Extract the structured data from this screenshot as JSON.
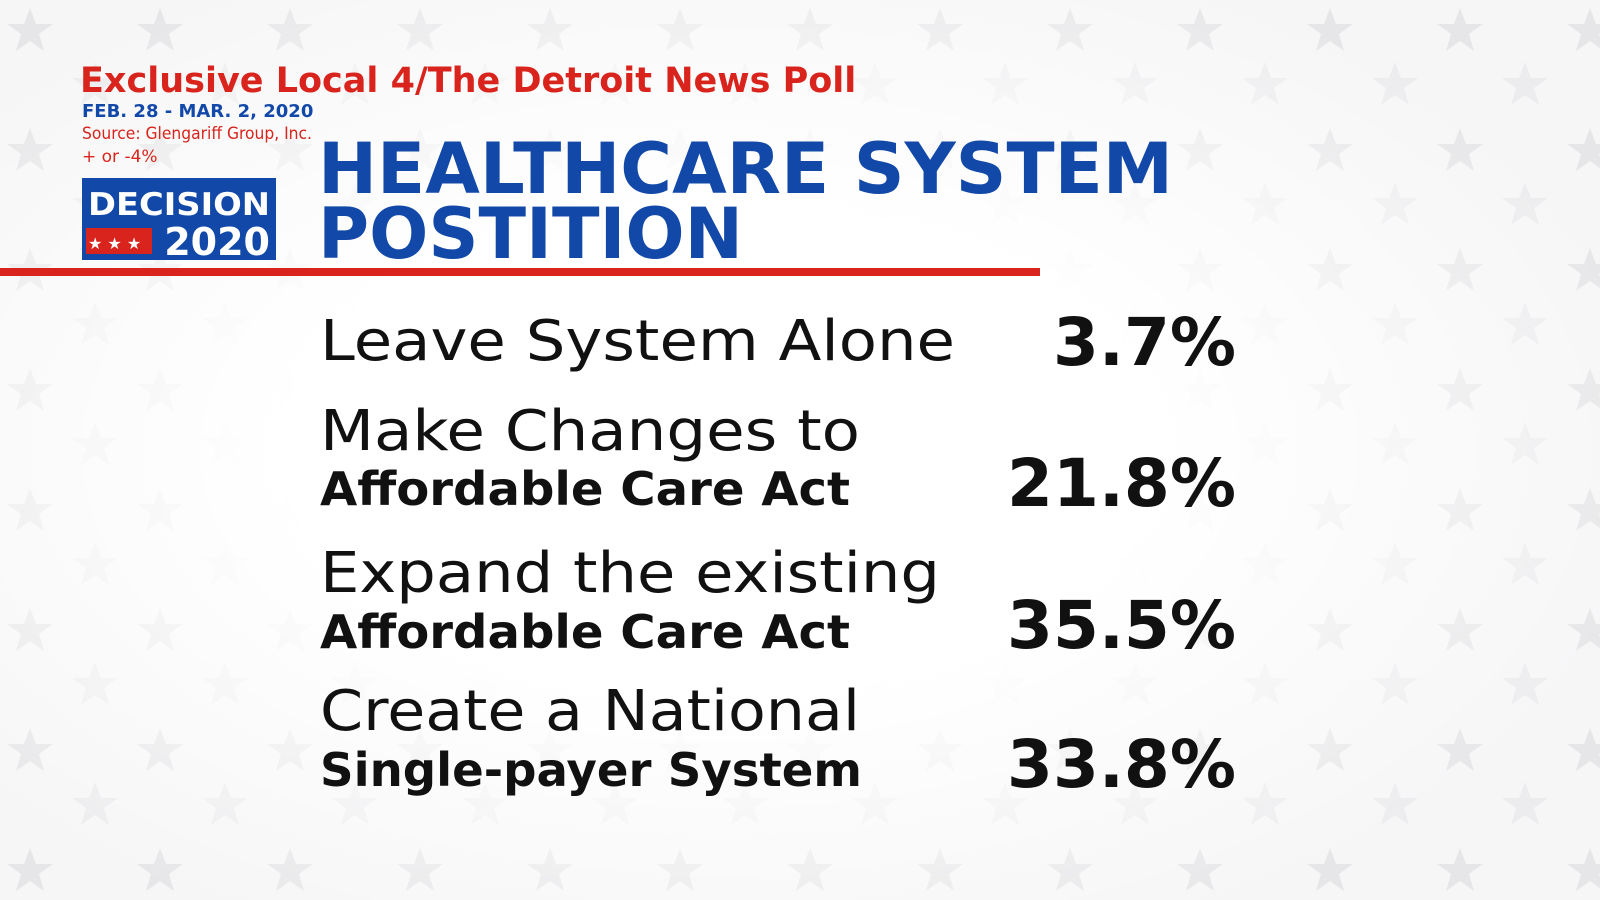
{
  "header": {
    "kicker": "Exclusive Local 4/The Detroit News Poll",
    "dates": "FEB. 28 - MAR. 2, 2020",
    "source": "Source: Glengariff Group, Inc.",
    "margin": "+ or -4%",
    "title_line1": "HEALTHCARE SYSTEM",
    "title_line2": "POSTITION"
  },
  "logo": {
    "line1": "DECISION",
    "line2": "2020"
  },
  "table": {
    "rows": [
      {
        "label": "Leave System Alone",
        "value": "3.7%"
      },
      {
        "label": "Make Changes to",
        "sublabel": "Affordable Care Act",
        "value": "21.8%"
      },
      {
        "label": "Expand the existing",
        "sublabel": "Affordable Care Act",
        "value": "35.5%"
      },
      {
        "label": "Create a National",
        "sublabel": "Single-payer System",
        "value": "33.8%"
      }
    ]
  }
}
